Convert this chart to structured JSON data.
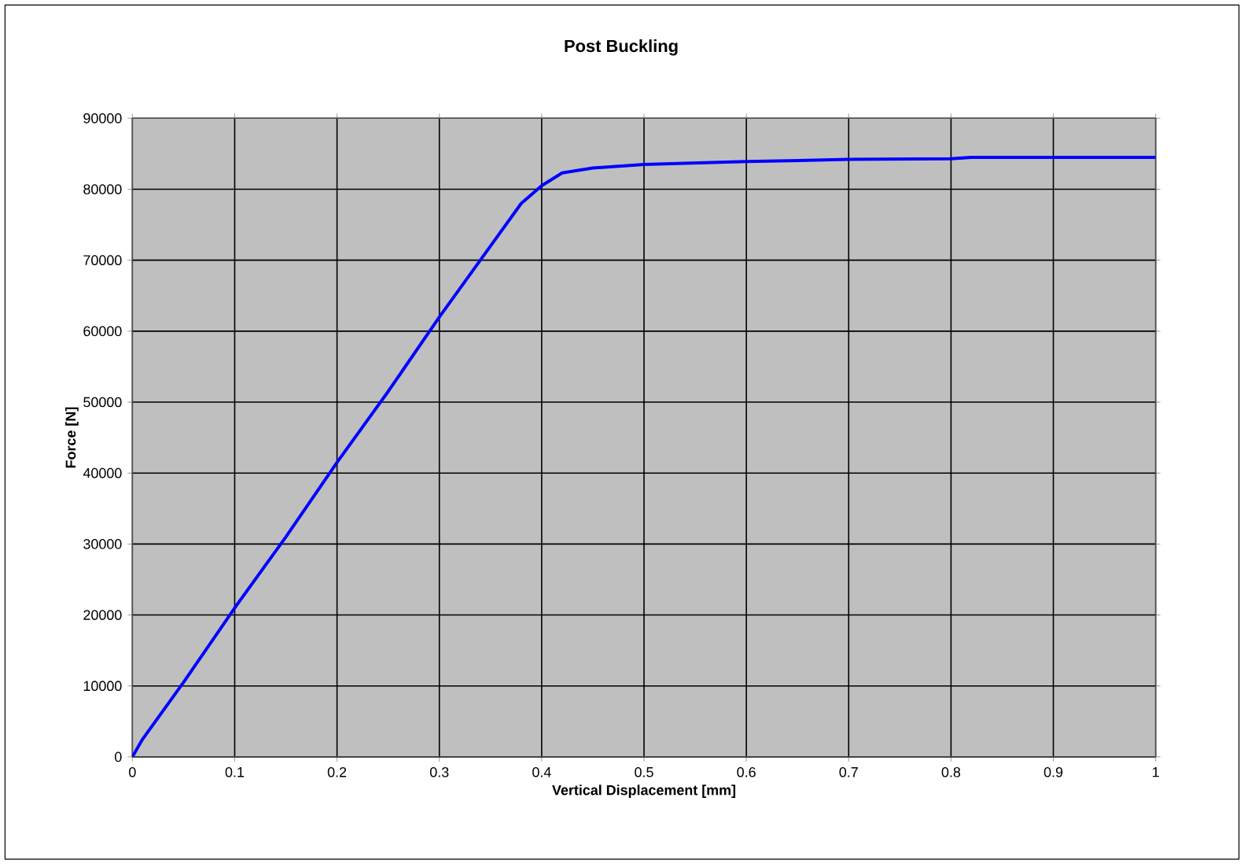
{
  "chart_data": {
    "type": "line",
    "title": "Post Buckling",
    "xlabel": "Vertical Displacement [mm]",
    "ylabel": "Force [N]",
    "x": [
      0,
      0.01,
      0.05,
      0.1,
      0.15,
      0.2,
      0.25,
      0.3,
      0.35,
      0.38,
      0.4,
      0.42,
      0.45,
      0.5,
      0.6,
      0.7,
      0.8,
      0.82,
      0.9,
      1
    ],
    "series": [
      {
        "color": "#0000ff",
        "values": [
          0,
          2500,
          10500,
          21000,
          31000,
          41500,
          51500,
          62000,
          72000,
          78000,
          80500,
          82300,
          83000,
          83500,
          83900,
          84200,
          84300,
          84500,
          84500,
          84500
        ]
      }
    ],
    "xlim": [
      0,
      1
    ],
    "ylim": [
      0,
      90000
    ],
    "xticks": [
      0,
      0.1,
      0.2,
      0.3,
      0.4,
      0.5,
      0.6,
      0.7,
      0.8,
      0.9,
      1
    ],
    "yticks": [
      0,
      10000,
      20000,
      30000,
      40000,
      50000,
      60000,
      70000,
      80000,
      90000
    ],
    "grid": true,
    "marker": "none",
    "line_style": "solid"
  }
}
